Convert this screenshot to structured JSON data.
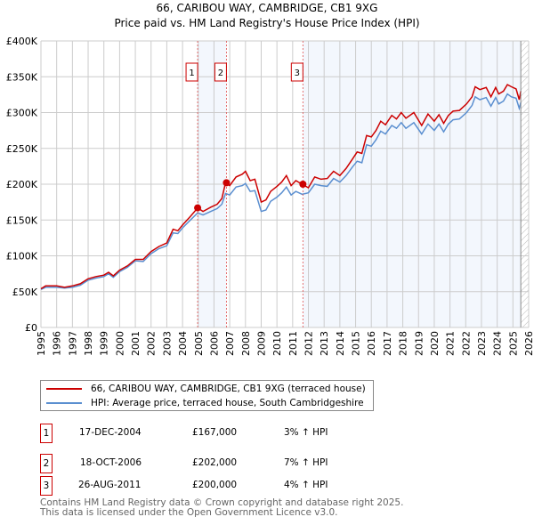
{
  "chart_data": {
    "type": "line",
    "title": "66, CARIBOU WAY, CAMBRIDGE, CB1 9XG",
    "subtitle": "Price paid vs. HM Land Registry's House Price Index (HPI)",
    "xlim": [
      1995,
      2026
    ],
    "ylim": [
      0,
      400000
    ],
    "y_ticks": [
      {
        "v": 0,
        "label": "£0"
      },
      {
        "v": 50000,
        "label": "£50K"
      },
      {
        "v": 100000,
        "label": "£100K"
      },
      {
        "v": 150000,
        "label": "£150K"
      },
      {
        "v": 200000,
        "label": "£200K"
      },
      {
        "v": 250000,
        "label": "£250K"
      },
      {
        "v": 300000,
        "label": "£300K"
      },
      {
        "v": 350000,
        "label": "£350K"
      },
      {
        "v": 400000,
        "label": "£400K"
      }
    ],
    "x_ticks": [
      "1995",
      "1996",
      "1997",
      "1998",
      "1999",
      "2000",
      "2001",
      "2002",
      "2003",
      "2004",
      "2005",
      "2006",
      "2007",
      "2008",
      "2009",
      "2010",
      "2011",
      "2012",
      "2013",
      "2014",
      "2015",
      "2016",
      "2017",
      "2018",
      "2019",
      "2020",
      "2021",
      "2022",
      "2023",
      "2024",
      "2025",
      "2026"
    ],
    "grid": true,
    "series": [
      {
        "name": "66, CARIBOU WAY, CAMBRIDGE, CB1 9XG (terraced house)",
        "color": "#cc0000",
        "x": [
          1995,
          1995.3,
          1996,
          1996.5,
          1997,
          1997.5,
          1998,
          1998.5,
          1999,
          1999.3,
          1999.6,
          2000,
          2000.5,
          2001,
          2001.5,
          2002,
          2002.5,
          2003,
          2003.4,
          2003.7,
          2004,
          2004.5,
          2004.96,
          2005.3,
          2005.8,
          2006.2,
          2006.5,
          2006.73,
          2007.0,
          2007.4,
          2007.8,
          2008.0,
          2008.3,
          2008.6,
          2009.0,
          2009.3,
          2009.6,
          2010.0,
          2010.3,
          2010.6,
          2010.9,
          2011.2,
          2011.6,
          2012.0,
          2012.4,
          2012.8,
          2013.2,
          2013.6,
          2014.0,
          2014.4,
          2014.8,
          2015.1,
          2015.4,
          2015.7,
          2016.0,
          2016.3,
          2016.6,
          2016.9,
          2017.3,
          2017.6,
          2017.9,
          2018.2,
          2018.7,
          2019.2,
          2019.6,
          2020.0,
          2020.3,
          2020.6,
          2020.9,
          2021.2,
          2021.6,
          2022.05,
          2022.4,
          2022.6,
          2022.9,
          2023.3,
          2023.6,
          2023.9,
          2024.1,
          2024.4,
          2024.65,
          2024.9,
          2025.2,
          2025.4,
          2025.5
        ],
        "values": [
          54000,
          58000,
          58000,
          56000,
          58000,
          61000,
          68000,
          71000,
          73000,
          77000,
          72000,
          80000,
          86000,
          95000,
          95000,
          106000,
          113000,
          118000,
          137000,
          135000,
          143000,
          155000,
          167000,
          162000,
          168000,
          172000,
          180000,
          202000,
          198000,
          210000,
          214000,
          218000,
          205000,
          207000,
          175000,
          178000,
          190000,
          197000,
          203000,
          212000,
          198000,
          205000,
          200000,
          195000,
          210000,
          207000,
          208000,
          218000,
          212000,
          222000,
          235000,
          245000,
          243000,
          268000,
          266000,
          275000,
          288000,
          283000,
          296000,
          291000,
          300000,
          292000,
          300000,
          282000,
          298000,
          288000,
          297000,
          285000,
          296000,
          302000,
          303000,
          312000,
          322000,
          336000,
          332000,
          335000,
          322000,
          335000,
          326000,
          330000,
          339000,
          336000,
          333000,
          318000,
          330000
        ]
      },
      {
        "name": "HPI: Average price, terraced house, South Cambridgeshire",
        "color": "#5b8fd0",
        "x": [
          1995,
          1995.3,
          1996,
          1996.5,
          1997,
          1997.5,
          1998,
          1998.5,
          1999,
          1999.3,
          1999.6,
          2000,
          2000.5,
          2001,
          2001.5,
          2002,
          2002.5,
          2003,
          2003.4,
          2003.7,
          2004,
          2004.5,
          2004.96,
          2005.3,
          2005.8,
          2006.2,
          2006.5,
          2006.73,
          2007.0,
          2007.4,
          2007.8,
          2008.0,
          2008.3,
          2008.6,
          2009.0,
          2009.3,
          2009.6,
          2010.0,
          2010.3,
          2010.6,
          2010.9,
          2011.2,
          2011.6,
          2012.0,
          2012.4,
          2012.8,
          2013.2,
          2013.6,
          2014.0,
          2014.4,
          2014.8,
          2015.1,
          2015.4,
          2015.7,
          2016.0,
          2016.3,
          2016.6,
          2016.9,
          2017.3,
          2017.6,
          2017.9,
          2018.2,
          2018.7,
          2019.2,
          2019.6,
          2020.0,
          2020.3,
          2020.6,
          2020.9,
          2021.2,
          2021.6,
          2022.05,
          2022.4,
          2022.6,
          2022.9,
          2023.3,
          2023.6,
          2023.9,
          2024.1,
          2024.4,
          2024.65,
          2024.9,
          2025.2,
          2025.4,
          2025.5
        ],
        "values": [
          53000,
          56000,
          56000,
          55000,
          56000,
          59000,
          66000,
          69000,
          71000,
          75000,
          70000,
          78000,
          84000,
          93000,
          92000,
          103000,
          110000,
          114000,
          132000,
          131000,
          139000,
          150000,
          160000,
          157000,
          162000,
          166000,
          172000,
          187000,
          185000,
          196000,
          198000,
          201000,
          190000,
          191000,
          162000,
          164000,
          176000,
          182000,
          188000,
          196000,
          185000,
          190000,
          186000,
          188000,
          200000,
          198000,
          197000,
          208000,
          203000,
          212000,
          224000,
          232000,
          230000,
          255000,
          253000,
          262000,
          274000,
          270000,
          282000,
          278000,
          286000,
          278000,
          286000,
          270000,
          284000,
          275000,
          284000,
          273000,
          284000,
          290000,
          291000,
          300000,
          310000,
          322000,
          318000,
          321000,
          309000,
          321000,
          312000,
          316000,
          326000,
          322000,
          320000,
          306000,
          314000
        ]
      }
    ],
    "sales": [
      {
        "label": "1",
        "x": 2004.96,
        "value": 167000
      },
      {
        "label": "2",
        "x": 2006.79,
        "value": 202000
      },
      {
        "label": "3",
        "x": 2011.65,
        "value": 200000
      }
    ],
    "shaded_ranges": [
      [
        2004.96,
        2006.79
      ],
      [
        2011.65,
        2025.5
      ]
    ],
    "hatched_from": 2025.5
  },
  "legend": {
    "items": [
      {
        "label": "66, CARIBOU WAY, CAMBRIDGE, CB1 9XG (terraced house)"
      },
      {
        "label": "HPI: Average price, terraced house, South Cambridgeshire"
      }
    ]
  },
  "table": [
    {
      "num": "1",
      "date": "17-DEC-2004",
      "price": "£167,000",
      "hpi": "3% ↑ HPI"
    },
    {
      "num": "2",
      "date": "18-OCT-2006",
      "price": "£202,000",
      "hpi": "7% ↑ HPI"
    },
    {
      "num": "3",
      "date": "26-AUG-2011",
      "price": "£200,000",
      "hpi": "4% ↑ HPI"
    }
  ],
  "footer": {
    "line1": "Contains HM Land Registry data © Crown copyright and database right 2025.",
    "line2": "This data is licensed under the Open Government Licence v3.0."
  }
}
